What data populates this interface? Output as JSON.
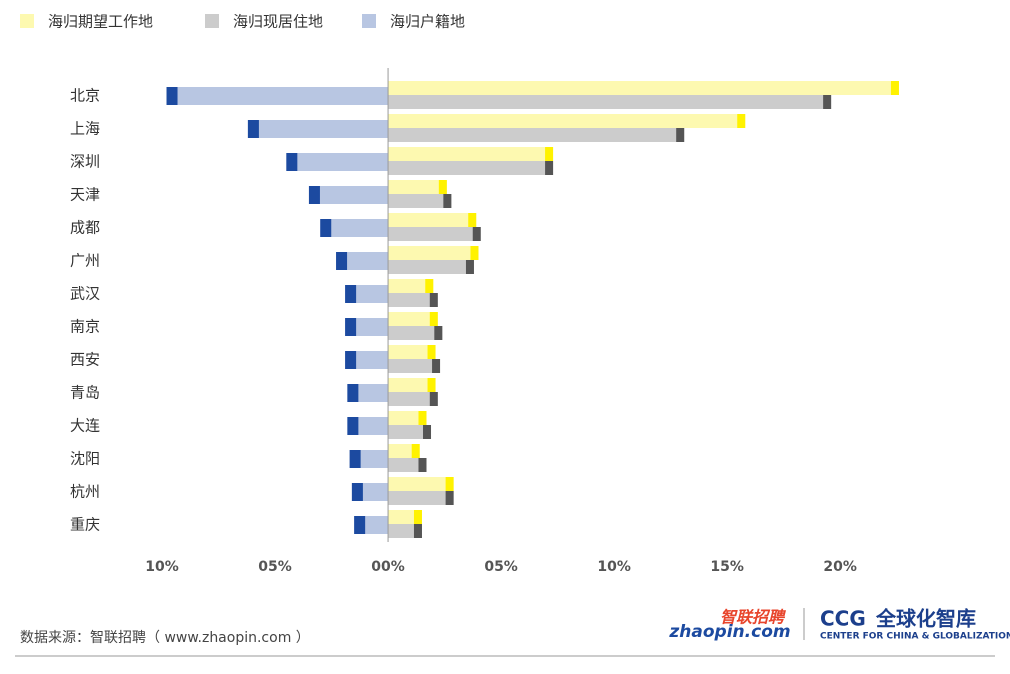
{
  "chart_data": {
    "type": "butterfly-bar",
    "categories": [
      "北京",
      "上海",
      "深圳",
      "天津",
      "成都",
      "广州",
      "武汉",
      "南京",
      "西安",
      "青岛",
      "大连",
      "沈阳",
      "杭州",
      "重庆"
    ],
    "series": [
      {
        "name": "海归期望工作地",
        "color": "#fdf9b0",
        "cap_color": "#fff200",
        "side": "right",
        "values": [
          22.6,
          15.8,
          7.3,
          2.6,
          3.9,
          4.0,
          2.0,
          2.2,
          2.1,
          2.1,
          1.7,
          1.4,
          2.9,
          1.5
        ]
      },
      {
        "name": "海归现居住地",
        "color": "#cccccc",
        "cap_color": "#555555",
        "side": "right",
        "values": [
          19.6,
          13.1,
          7.3,
          2.8,
          4.1,
          3.8,
          2.2,
          2.4,
          2.3,
          2.2,
          1.9,
          1.7,
          2.9,
          1.5
        ]
      },
      {
        "name": "海归户籍地",
        "color": "#b8c6e2",
        "cap_color": "#1c4aa0",
        "side": "left",
        "values": [
          9.8,
          6.2,
          4.5,
          3.5,
          3.0,
          2.3,
          1.9,
          1.9,
          1.9,
          1.8,
          1.8,
          1.7,
          1.6,
          1.5
        ]
      }
    ],
    "xlim": [
      -10,
      23
    ],
    "xticks": [
      {
        "value": -10,
        "label": "10%"
      },
      {
        "value": -5,
        "label": "05%"
      },
      {
        "value": 0,
        "label": "00%"
      },
      {
        "value": 5,
        "label": "05%"
      },
      {
        "value": 10,
        "label": "10%"
      },
      {
        "value": 15,
        "label": "15%"
      },
      {
        "value": 20,
        "label": "20%"
      }
    ],
    "source": "数据来源：智联招聘（ www.zhaopin.com ）",
    "logos": {
      "zhaopin_cn": "智联招聘",
      "zhaopin_en": "zhaopin.com",
      "ccg": "CCG",
      "ccg_cn": "全球化智库",
      "ccg_en": "CENTER FOR CHINA & GLOBALIZATION"
    }
  }
}
